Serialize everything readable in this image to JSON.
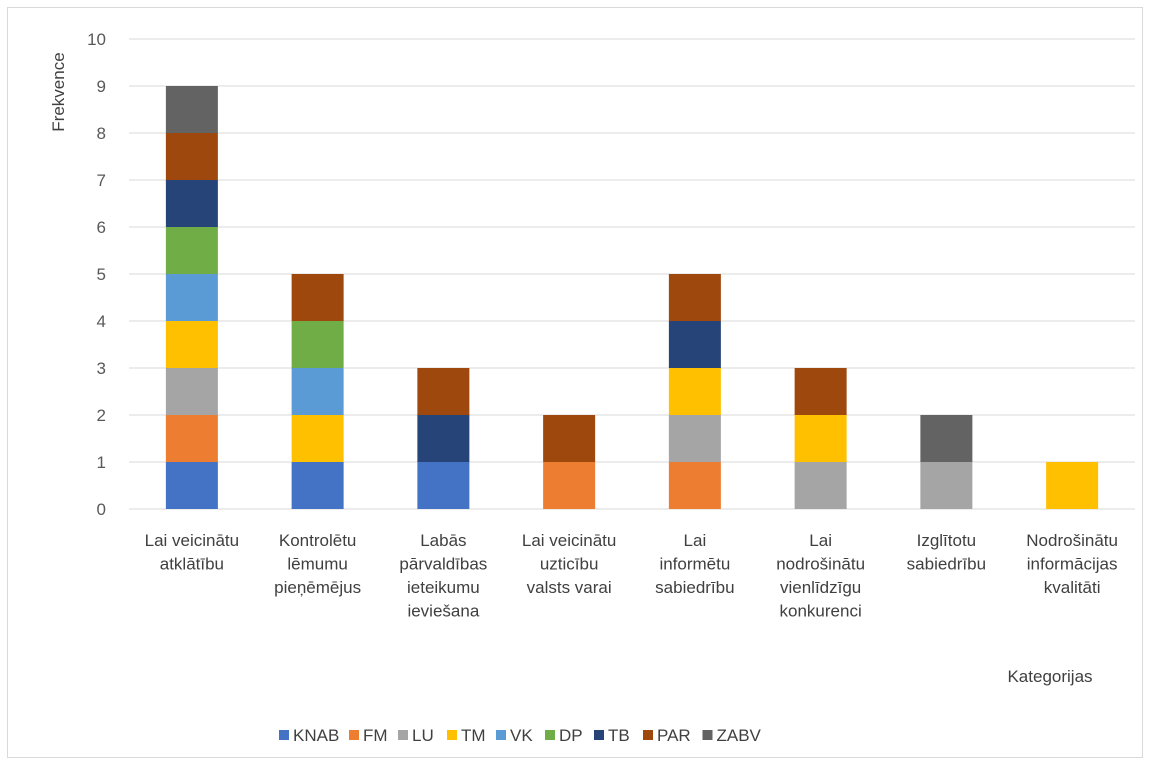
{
  "chart_data": {
    "type": "bar",
    "stacked": true,
    "title": "",
    "ylabel": "Frekvence",
    "xlabel": "Kategorijas",
    "ylim": [
      0,
      10
    ],
    "yticks": [
      "0",
      "1",
      "2",
      "3",
      "4",
      "5",
      "6",
      "7",
      "8",
      "9",
      "10"
    ],
    "grid": true,
    "legend_position": "bottom",
    "categories": [
      [
        "Lai veicinātu",
        "atklātību"
      ],
      [
        "Kontrolētu",
        "lēmumu",
        "pieņēmējus"
      ],
      [
        "Labās",
        "pārvaldības",
        "ieteikumu",
        "ieviešana"
      ],
      [
        "Lai veicinātu",
        "uzticību",
        "valsts varai"
      ],
      [
        "Lai",
        "informētu",
        "sabiedrību"
      ],
      [
        "Lai",
        "nodrošinātu",
        "vienlīdzīgu",
        "konkurenci"
      ],
      [
        "Izglītotu",
        "sabiedrību"
      ],
      [
        "Nodrošinātu",
        "informācijas",
        "kvalitāti"
      ]
    ],
    "series": [
      {
        "name": "KNAB",
        "color": "#4472c4",
        "values": [
          1,
          1,
          1,
          0,
          0,
          0,
          0,
          0
        ]
      },
      {
        "name": "FM",
        "color": "#ed7d31",
        "values": [
          1,
          0,
          0,
          1,
          1,
          0,
          0,
          0
        ]
      },
      {
        "name": "LU",
        "color": "#a5a5a5",
        "values": [
          1,
          0,
          0,
          0,
          1,
          1,
          1,
          0
        ]
      },
      {
        "name": "TM",
        "color": "#ffc000",
        "values": [
          1,
          1,
          0,
          0,
          1,
          1,
          0,
          1
        ]
      },
      {
        "name": "VK",
        "color": "#5b9bd5",
        "values": [
          1,
          1,
          0,
          0,
          0,
          0,
          0,
          0
        ]
      },
      {
        "name": "DP",
        "color": "#70ad47",
        "values": [
          1,
          1,
          0,
          0,
          0,
          0,
          0,
          0
        ]
      },
      {
        "name": "TB",
        "color": "#264478",
        "values": [
          1,
          0,
          1,
          0,
          1,
          0,
          0,
          0
        ]
      },
      {
        "name": "PAR",
        "color": "#9e480e",
        "values": [
          1,
          1,
          1,
          1,
          1,
          1,
          0,
          0
        ]
      },
      {
        "name": "ZABV",
        "color": "#636363",
        "values": [
          1,
          0,
          0,
          0,
          0,
          0,
          1,
          0
        ]
      }
    ]
  }
}
